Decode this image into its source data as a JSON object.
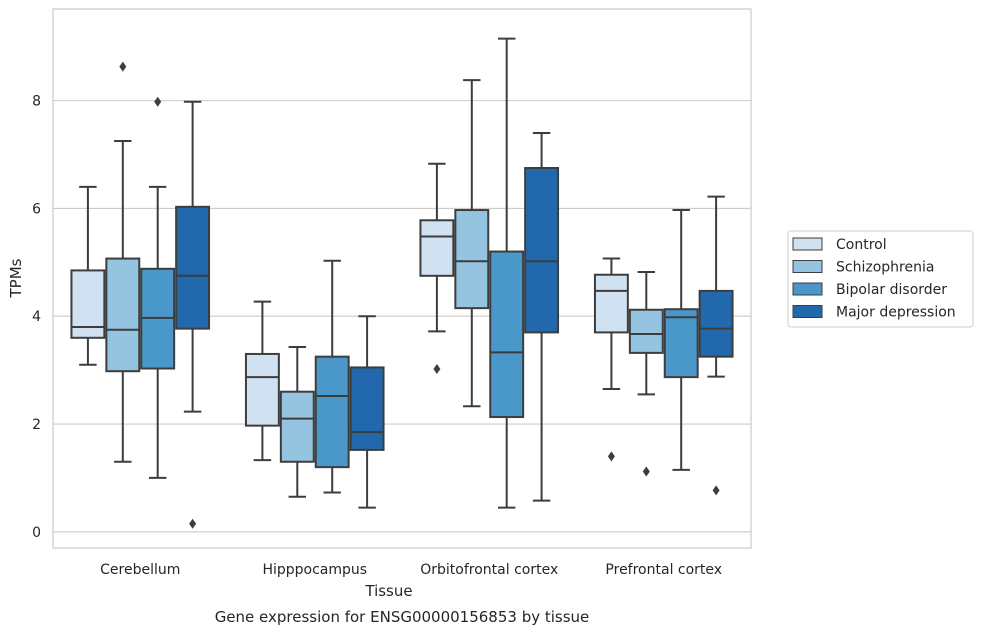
{
  "chart_data": {
    "type": "box",
    "title": "",
    "caption": "Gene expression for ENSG00000156853 by tissue",
    "xlabel": "Tissue",
    "ylabel": "TPMs",
    "ylim": [
      -0.3,
      9.7
    ],
    "yticks": [
      0,
      2,
      4,
      6,
      8
    ],
    "grid": "horizontal",
    "legend_position": "right",
    "categories": [
      "Cerebellum",
      "Hipppocampus",
      "Orbitofrontal cortex",
      "Prefrontal cortex"
    ],
    "series": [
      {
        "name": "Control",
        "color": "#d0e1f2",
        "boxes": [
          {
            "whislo": 3.1,
            "q1": 3.6,
            "med": 3.8,
            "q3": 4.85,
            "whishi": 6.4,
            "fliers": []
          },
          {
            "whislo": 1.33,
            "q1": 1.97,
            "med": 2.87,
            "q3": 3.3,
            "whishi": 4.27,
            "fliers": []
          },
          {
            "whislo": 3.72,
            "q1": 4.75,
            "med": 5.48,
            "q3": 5.78,
            "whishi": 6.83,
            "fliers": [
              3.02
            ]
          },
          {
            "whislo": 2.65,
            "q1": 3.7,
            "med": 4.47,
            "q3": 4.77,
            "whishi": 5.07,
            "fliers": [
              1.4
            ]
          }
        ]
      },
      {
        "name": "Schizophrenia",
        "color": "#94c4df",
        "boxes": [
          {
            "whislo": 1.3,
            "q1": 2.98,
            "med": 3.75,
            "q3": 5.07,
            "whishi": 7.25,
            "fliers": [
              8.63
            ]
          },
          {
            "whislo": 0.65,
            "q1": 1.3,
            "med": 2.1,
            "q3": 2.6,
            "whishi": 3.43,
            "fliers": []
          },
          {
            "whislo": 2.33,
            "q1": 4.15,
            "med": 5.02,
            "q3": 5.97,
            "whishi": 8.38,
            "fliers": []
          },
          {
            "whislo": 2.55,
            "q1": 3.32,
            "med": 3.67,
            "q3": 4.12,
            "whishi": 4.82,
            "fliers": [
              1.12
            ]
          }
        ]
      },
      {
        "name": "Bipolar disorder",
        "color": "#4a98c9",
        "boxes": [
          {
            "whislo": 1.0,
            "q1": 3.03,
            "med": 3.97,
            "q3": 4.88,
            "whishi": 6.4,
            "fliers": [
              7.98
            ]
          },
          {
            "whislo": 0.73,
            "q1": 1.2,
            "med": 2.52,
            "q3": 3.25,
            "whishi": 5.03,
            "fliers": []
          },
          {
            "whislo": 0.45,
            "q1": 2.13,
            "med": 3.33,
            "q3": 5.2,
            "whishi": 9.15,
            "fliers": []
          },
          {
            "whislo": 1.15,
            "q1": 2.87,
            "med": 3.98,
            "q3": 4.13,
            "whishi": 5.97,
            "fliers": []
          }
        ]
      },
      {
        "name": "Major depression",
        "color": "#2268ad",
        "boxes": [
          {
            "whislo": 2.23,
            "q1": 3.77,
            "med": 4.75,
            "q3": 6.03,
            "whishi": 7.98,
            "fliers": [
              0.15
            ]
          },
          {
            "whislo": 0.45,
            "q1": 1.52,
            "med": 1.85,
            "q3": 3.05,
            "whishi": 4.0,
            "fliers": []
          },
          {
            "whislo": 0.58,
            "q1": 3.7,
            "med": 5.02,
            "q3": 6.75,
            "whishi": 7.4,
            "fliers": []
          },
          {
            "whislo": 2.88,
            "q1": 3.25,
            "med": 3.77,
            "q3": 4.47,
            "whishi": 6.22,
            "fliers": [
              0.77
            ]
          }
        ]
      }
    ]
  }
}
